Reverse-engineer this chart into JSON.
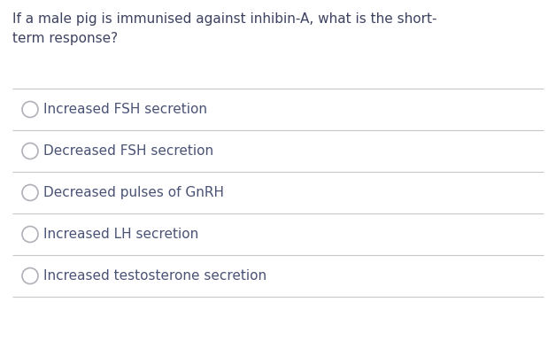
{
  "question_line1": "If a male pig is immunised against inhibin-A, what is the short-",
  "question_line2": "term response?",
  "options": [
    "Increased FSH secretion",
    "Decreased FSH secretion",
    "Decreased pulses of GnRH",
    "Increased LH secretion",
    "Increased testosterone secretion"
  ],
  "background_color": "#ffffff",
  "text_color": "#4a5275",
  "question_color": "#3d4260",
  "line_color": "#c8c8c8",
  "circle_edge_color": "#b0b0b8",
  "circle_fill_color": "#ffffff",
  "question_fontsize": 11.0,
  "option_fontsize": 11.0,
  "fig_width": 6.28,
  "fig_height": 3.85,
  "dpi": 100
}
